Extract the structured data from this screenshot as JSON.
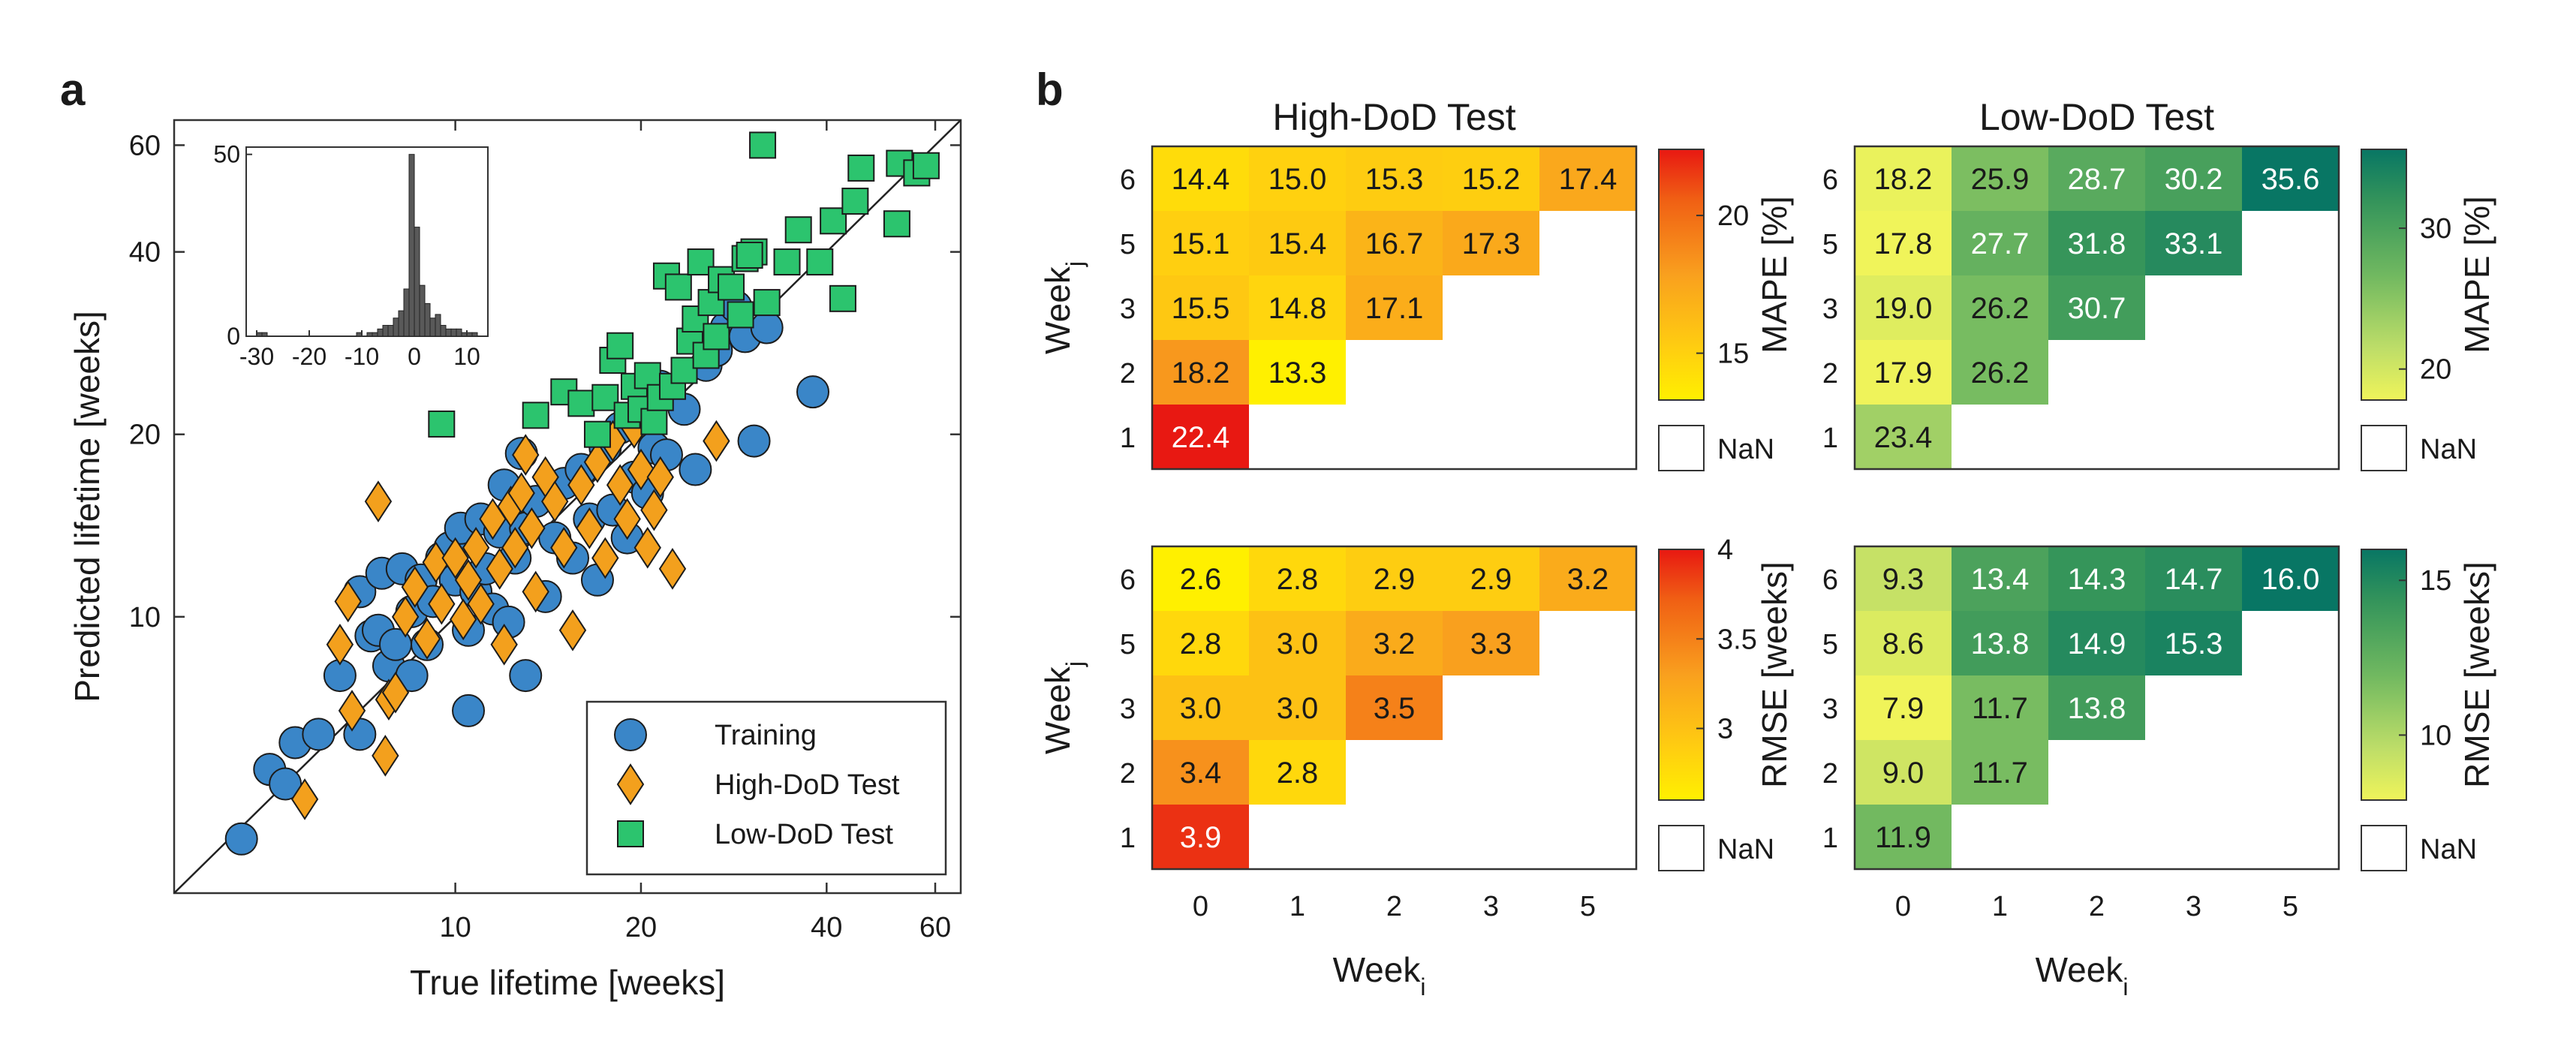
{
  "panels": {
    "a": "a",
    "b": "b"
  },
  "colors": {
    "training": "#3a86c8",
    "high_dod": "#f3a01d",
    "low_dod": "#2cc46e",
    "nan_fill": "#ffffff"
  },
  "chart_data": [
    {
      "type": "scatter",
      "panel": "a",
      "xlabel": "True lifetime [weeks]",
      "ylabel": "Predicted lifetime [weeks]",
      "xscale": "log",
      "yscale": "log",
      "xlim": [
        3.5,
        66
      ],
      "ylim": [
        3.5,
        66
      ],
      "xticks": [
        10,
        20,
        40,
        60
      ],
      "yticks": [
        10,
        20,
        40,
        60
      ],
      "identity_line": true,
      "legend": [
        "Training",
        "High-DoD Test",
        "Low-DoD Test"
      ],
      "legend_position": "bottom-right",
      "series": [
        {
          "name": "Training",
          "marker": "circle",
          "points": [
            [
              4.5,
              4.3
            ],
            [
              5.0,
              5.6
            ],
            [
              5.3,
              5.3
            ],
            [
              5.5,
              6.2
            ],
            [
              6.0,
              6.4
            ],
            [
              6.5,
              8.0
            ],
            [
              7.0,
              6.4
            ],
            [
              7.0,
              11.0
            ],
            [
              7.3,
              9.3
            ],
            [
              7.5,
              9.5
            ],
            [
              7.6,
              11.8
            ],
            [
              7.8,
              8.3
            ],
            [
              8.0,
              9.0
            ],
            [
              8.2,
              12.0
            ],
            [
              8.5,
              8.0
            ],
            [
              8.5,
              10.2
            ],
            [
              8.8,
              11.5
            ],
            [
              9.0,
              9.0
            ],
            [
              9.2,
              10.6
            ],
            [
              9.5,
              12.5
            ],
            [
              9.8,
              13.0
            ],
            [
              10.0,
              11.5
            ],
            [
              10.2,
              14.0
            ],
            [
              10.5,
              7.0
            ],
            [
              10.5,
              9.5
            ],
            [
              10.8,
              11.0
            ],
            [
              11.0,
              14.5
            ],
            [
              11.2,
              12.0
            ],
            [
              11.5,
              10.3
            ],
            [
              11.8,
              13.8
            ],
            [
              12.0,
              16.5
            ],
            [
              12.2,
              9.8
            ],
            [
              12.5,
              12.5
            ],
            [
              12.8,
              18.6
            ],
            [
              13.0,
              8.0
            ],
            [
              13.0,
              14.0
            ],
            [
              13.5,
              15.5
            ],
            [
              14.0,
              10.8
            ],
            [
              14.5,
              13.5
            ],
            [
              15.0,
              16.6
            ],
            [
              15.5,
              12.5
            ],
            [
              16.0,
              17.5
            ],
            [
              16.5,
              14.5
            ],
            [
              17.0,
              11.5
            ],
            [
              17.5,
              19.0
            ],
            [
              18.0,
              15.0
            ],
            [
              18.5,
              20.5
            ],
            [
              19.0,
              13.5
            ],
            [
              19.5,
              17.0
            ],
            [
              20.0,
              21.0
            ],
            [
              20.5,
              16.0
            ],
            [
              21.0,
              19.0
            ],
            [
              21.5,
              24.0
            ],
            [
              22.0,
              18.5
            ],
            [
              23.5,
              22.0
            ],
            [
              24.5,
              17.5
            ],
            [
              25.5,
              26.0
            ],
            [
              26.5,
              27.5
            ],
            [
              27.5,
              30.0
            ],
            [
              28.5,
              32.5
            ],
            [
              29.5,
              29.0
            ],
            [
              30.5,
              19.5
            ],
            [
              32.0,
              30.0
            ],
            [
              38.0,
              23.5
            ]
          ]
        },
        {
          "name": "High-DoD Test",
          "marker": "diamond",
          "points": [
            [
              5.7,
              5.0
            ],
            [
              6.5,
              9.0
            ],
            [
              6.7,
              10.6
            ],
            [
              6.8,
              7.0
            ],
            [
              7.7,
              5.9
            ],
            [
              7.8,
              7.3
            ],
            [
              8.0,
              7.5
            ],
            [
              8.3,
              10.0
            ],
            [
              8.6,
              11.2
            ],
            [
              9.0,
              9.2
            ],
            [
              9.3,
              12.3
            ],
            [
              9.5,
              10.5
            ],
            [
              10.0,
              12.5
            ],
            [
              10.3,
              9.9
            ],
            [
              10.5,
              11.5
            ],
            [
              10.8,
              13.0
            ],
            [
              11.0,
              10.5
            ],
            [
              11.5,
              14.5
            ],
            [
              11.8,
              12.0
            ],
            [
              12.0,
              9.0
            ],
            [
              12.3,
              15.2
            ],
            [
              12.5,
              13.0
            ],
            [
              12.8,
              16.0
            ],
            [
              13.0,
              18.5
            ],
            [
              13.3,
              14.0
            ],
            [
              13.5,
              11.0
            ],
            [
              14.0,
              17.0
            ],
            [
              14.5,
              15.5
            ],
            [
              15.0,
              13.0
            ],
            [
              15.5,
              9.5
            ],
            [
              16.0,
              16.5
            ],
            [
              16.5,
              14.0
            ],
            [
              17.0,
              18.0
            ],
            [
              17.5,
              12.5
            ],
            [
              18.0,
              19.5
            ],
            [
              18.5,
              16.5
            ],
            [
              19.0,
              14.5
            ],
            [
              19.5,
              20.5
            ],
            [
              20.0,
              17.5
            ],
            [
              20.5,
              13.0
            ],
            [
              21.0,
              15.0
            ],
            [
              21.5,
              17.0
            ],
            [
              22.5,
              12.0
            ],
            [
              26.5,
              19.5
            ],
            [
              7.5,
              15.5
            ]
          ]
        },
        {
          "name": "Low-DoD Test",
          "marker": "square",
          "points": [
            [
              9.5,
              20.8
            ],
            [
              13.5,
              21.5
            ],
            [
              15.0,
              23.5
            ],
            [
              16.0,
              22.5
            ],
            [
              17.0,
              20.0
            ],
            [
              17.5,
              23.0
            ],
            [
              18.0,
              26.5
            ],
            [
              18.5,
              28.0
            ],
            [
              19.0,
              21.5
            ],
            [
              19.5,
              24.0
            ],
            [
              20.0,
              22.0
            ],
            [
              20.5,
              25.0
            ],
            [
              21.0,
              21.0
            ],
            [
              21.5,
              23.0
            ],
            [
              22.0,
              36.5
            ],
            [
              22.5,
              24.0
            ],
            [
              23.0,
              35.0
            ],
            [
              23.5,
              25.5
            ],
            [
              24.0,
              28.5
            ],
            [
              24.5,
              31.0
            ],
            [
              25.0,
              38.5
            ],
            [
              25.5,
              27.0
            ],
            [
              26.0,
              33.0
            ],
            [
              26.5,
              29.0
            ],
            [
              27.0,
              36.0
            ],
            [
              28.0,
              35.0
            ],
            [
              29.0,
              31.5
            ],
            [
              29.5,
              39.0
            ],
            [
              30.5,
              40.0
            ],
            [
              31.5,
              60.0
            ],
            [
              32.0,
              33.0
            ],
            [
              34.5,
              38.5
            ],
            [
              36.0,
              43.5
            ],
            [
              39.0,
              38.5
            ],
            [
              41.0,
              45.0
            ],
            [
              42.5,
              33.5
            ],
            [
              44.5,
              48.5
            ],
            [
              45.5,
              55.0
            ],
            [
              52.0,
              44.5
            ],
            [
              52.5,
              56.0
            ],
            [
              56.0,
              54.0
            ],
            [
              58.0,
              55.5
            ],
            [
              30.0,
              39.5
            ]
          ]
        }
      ],
      "inset": {
        "type": "histogram",
        "xlim": [
          -32,
          14
        ],
        "ylim": [
          0,
          52
        ],
        "xticks": [
          -30,
          -20,
          -10,
          0,
          10
        ],
        "yticks": [
          0,
          50
        ],
        "bin_width": 1,
        "bin_starts": [
          -30,
          -29,
          -28,
          -27,
          -26,
          -25,
          -24,
          -23,
          -22,
          -21,
          -20,
          -19,
          -18,
          -17,
          -16,
          -15,
          -14,
          -13,
          -12,
          -11,
          -10,
          -9,
          -8,
          -7,
          -6,
          -5,
          -4,
          -3,
          -2,
          -1,
          0,
          1,
          2,
          3,
          4,
          5,
          6,
          7,
          8,
          9,
          10,
          11,
          12
        ],
        "counts": [
          1,
          1,
          0,
          0,
          0,
          0,
          0,
          0,
          0,
          0,
          0,
          0,
          0,
          0,
          0,
          0,
          0,
          0,
          0,
          1,
          0,
          1,
          1,
          2,
          3,
          3,
          5,
          7,
          13,
          50,
          30,
          14,
          9,
          5,
          6,
          3,
          2,
          2,
          2,
          1,
          1,
          1,
          0
        ]
      }
    },
    {
      "type": "heatmap",
      "panel": "b",
      "title": "High-DoD Test",
      "metric": "MAPE",
      "xlabel": "Week",
      "xlabel_sub": "i",
      "ylabel": "Week",
      "ylabel_sub": "j",
      "x_categories": [
        "0",
        "1",
        "2",
        "3",
        "5"
      ],
      "y_categories": [
        "6",
        "5",
        "3",
        "2",
        "1"
      ],
      "values": [
        [
          14.4,
          15.0,
          15.3,
          15.2,
          17.4
        ],
        [
          15.1,
          15.4,
          16.7,
          17.3,
          null
        ],
        [
          15.5,
          14.8,
          17.1,
          null,
          null
        ],
        [
          18.2,
          13.3,
          null,
          null,
          null
        ],
        [
          22.4,
          null,
          null,
          null,
          null
        ]
      ],
      "colormap": "yellow-orange-red",
      "color_range": [
        13.3,
        22.4
      ],
      "colorbar_label": "MAPE [%]",
      "colorbar_ticks": [
        15,
        20
      ],
      "nan_label": "NaN"
    },
    {
      "type": "heatmap",
      "panel": "b",
      "title": "Low-DoD Test",
      "metric": "MAPE",
      "xlabel": "Week",
      "xlabel_sub": "i",
      "x_categories": [
        "0",
        "1",
        "2",
        "3",
        "5"
      ],
      "y_categories": [
        "6",
        "5",
        "3",
        "2",
        "1"
      ],
      "values": [
        [
          18.2,
          25.9,
          28.7,
          30.2,
          35.6
        ],
        [
          17.8,
          27.7,
          31.8,
          33.1,
          null
        ],
        [
          19.0,
          26.2,
          30.7,
          null,
          null
        ],
        [
          17.9,
          26.2,
          null,
          null,
          null
        ],
        [
          23.4,
          null,
          null,
          null,
          null
        ]
      ],
      "colormap": "yellow-green",
      "color_range": [
        17.8,
        35.6
      ],
      "colorbar_label": "MAPE [%]",
      "colorbar_ticks": [
        20,
        30
      ],
      "nan_label": "NaN"
    },
    {
      "type": "heatmap",
      "panel": "b",
      "title": "",
      "metric": "RMSE",
      "xlabel": "Week",
      "xlabel_sub": "i",
      "ylabel": "Week",
      "ylabel_sub": "j",
      "x_categories": [
        "0",
        "1",
        "2",
        "3",
        "5"
      ],
      "y_categories": [
        "6",
        "5",
        "3",
        "2",
        "1"
      ],
      "values": [
        [
          2.6,
          2.8,
          2.9,
          2.9,
          3.2
        ],
        [
          2.8,
          3.0,
          3.2,
          3.3,
          null
        ],
        [
          3.0,
          3.0,
          3.5,
          null,
          null
        ],
        [
          3.4,
          2.8,
          null,
          null,
          null
        ],
        [
          3.9,
          null,
          null,
          null,
          null
        ]
      ],
      "colormap": "yellow-orange-red",
      "color_range": [
        2.6,
        4.0
      ],
      "colorbar_label": "RMSE [weeks]",
      "colorbar_ticks": [
        3,
        3.5,
        4
      ],
      "colorbar_tick_labels": [
        "3",
        "3.5",
        "4"
      ],
      "nan_label": "NaN"
    },
    {
      "type": "heatmap",
      "panel": "b",
      "title": "",
      "metric": "RMSE",
      "xlabel": "Week",
      "xlabel_sub": "i",
      "x_categories": [
        "0",
        "1",
        "2",
        "3",
        "5"
      ],
      "y_categories": [
        "6",
        "5",
        "3",
        "2",
        "1"
      ],
      "values": [
        [
          9.3,
          13.4,
          14.3,
          14.7,
          16.0
        ],
        [
          8.6,
          13.8,
          14.9,
          15.3,
          null
        ],
        [
          7.9,
          11.7,
          13.8,
          null,
          null
        ],
        [
          9.0,
          11.7,
          null,
          null,
          null
        ],
        [
          11.9,
          null,
          null,
          null,
          null
        ]
      ],
      "colormap": "yellow-green",
      "color_range": [
        7.9,
        16.0
      ],
      "colorbar_label": "RMSE [weeks]",
      "colorbar_ticks": [
        10,
        15
      ],
      "nan_label": "NaN"
    }
  ]
}
